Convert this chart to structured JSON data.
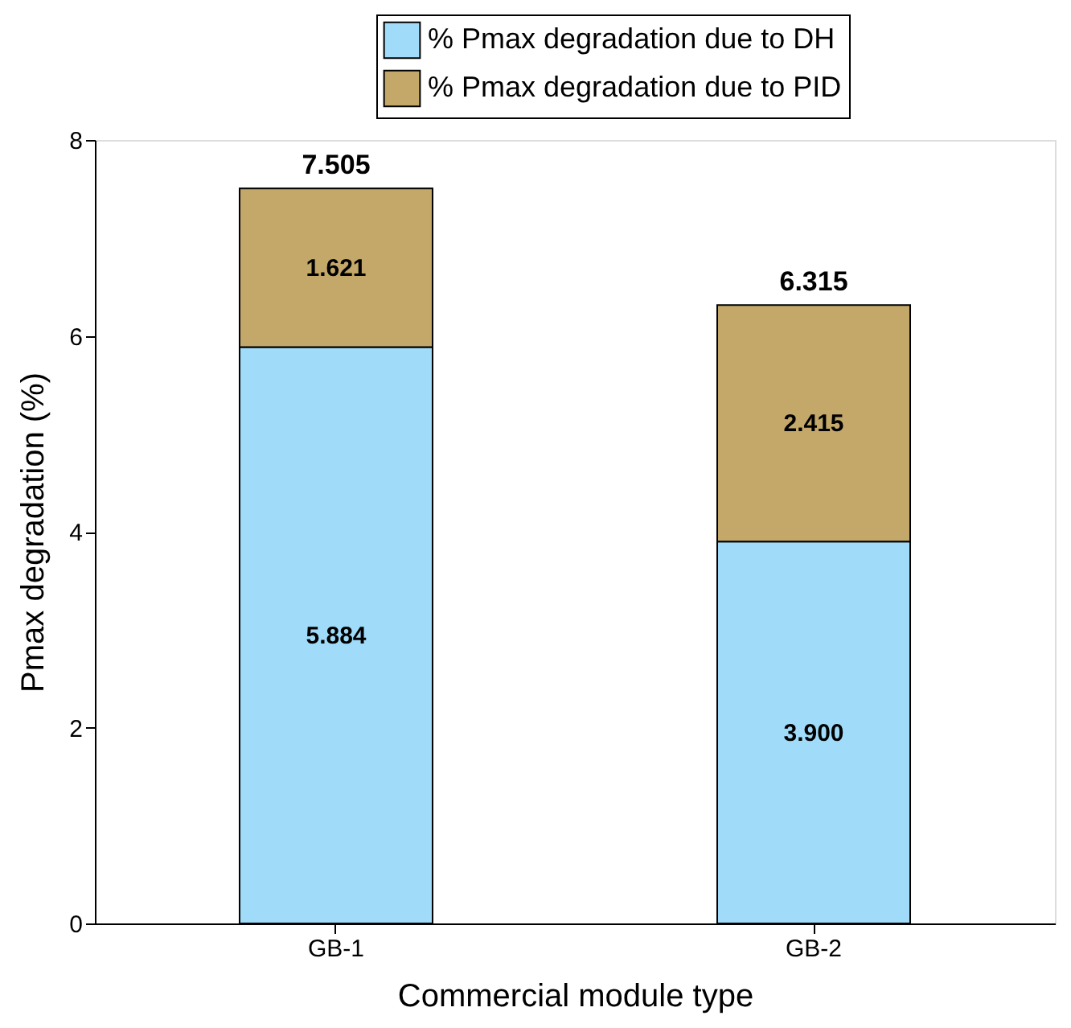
{
  "chart_data": {
    "type": "bar",
    "stacked": true,
    "xlabel": "Commercial module type",
    "ylabel": "Pmax degradation (%)",
    "categories": [
      "GB-1",
      "GB-2"
    ],
    "series": [
      {
        "name": "% Pmax degradation due to DH",
        "color": "#a0dcfa",
        "values": [
          5.884,
          3.9
        ],
        "value_labels": [
          "5.884",
          "3.900"
        ]
      },
      {
        "name": "% Pmax degradation due to PID",
        "color": "#c4a86a",
        "values": [
          1.621,
          2.415
        ],
        "value_labels": [
          "1.621",
          "2.415"
        ]
      }
    ],
    "totals": [
      "7.505",
      "6.315"
    ],
    "ylim": [
      0,
      8
    ],
    "yticks": [
      0,
      2,
      4,
      6,
      8
    ],
    "grid": false,
    "legend": "top"
  }
}
